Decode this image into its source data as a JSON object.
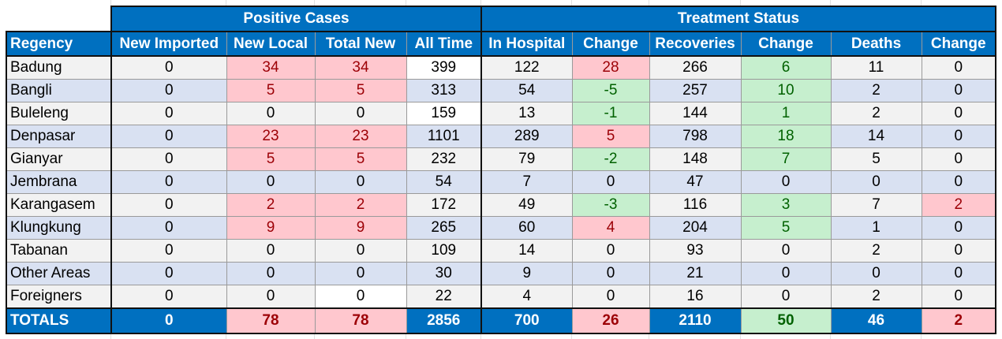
{
  "groups": {
    "positive_cases": "Positive Cases",
    "treatment_status": "Treatment Status"
  },
  "headers": [
    "Regency",
    "New Imported",
    "New Local",
    "Total New",
    "All Time",
    "In Hospital",
    "Change",
    "Recoveries",
    "Change",
    "Deaths",
    "Change"
  ],
  "rows": [
    [
      "Badung",
      "0",
      "34",
      "34",
      "399",
      "122",
      "28",
      "266",
      "6",
      "11",
      "0"
    ],
    [
      "Bangli",
      "0",
      "5",
      "5",
      "313",
      "54",
      "-5",
      "257",
      "10",
      "2",
      "0"
    ],
    [
      "Buleleng",
      "0",
      "0",
      "0",
      "159",
      "13",
      "-1",
      "144",
      "1",
      "2",
      "0"
    ],
    [
      "Denpasar",
      "0",
      "23",
      "23",
      "1101",
      "289",
      "5",
      "798",
      "18",
      "14",
      "0"
    ],
    [
      "Gianyar",
      "0",
      "5",
      "5",
      "232",
      "79",
      "-2",
      "148",
      "7",
      "5",
      "0"
    ],
    [
      "Jembrana",
      "0",
      "0",
      "0",
      "54",
      "7",
      "0",
      "47",
      "0",
      "0",
      "0"
    ],
    [
      "Karangasem",
      "0",
      "2",
      "2",
      "172",
      "49",
      "-3",
      "116",
      "3",
      "7",
      "2"
    ],
    [
      "Klungkung",
      "0",
      "9",
      "9",
      "265",
      "60",
      "4",
      "204",
      "5",
      "1",
      "0"
    ],
    [
      "Tabanan",
      "0",
      "0",
      "0",
      "109",
      "14",
      "0",
      "93",
      "0",
      "2",
      "0"
    ],
    [
      "Other Areas",
      "0",
      "0",
      "0",
      "30",
      "9",
      "0",
      "21",
      "0",
      "0",
      "0"
    ],
    [
      "Foreigners",
      "0",
      "0",
      "0",
      "22",
      "4",
      "0",
      "16",
      "0",
      "2",
      "0"
    ]
  ],
  "totals": [
    "TOTALS",
    "0",
    "78",
    "78",
    "2856",
    "700",
    "26",
    "2110",
    "50",
    "46",
    "2"
  ],
  "colors": {
    "header_blue": "#0070c0",
    "red_fill": "#ffc7ce",
    "red_text": "#9c0006",
    "green_fill": "#c6efce",
    "green_text": "#006100"
  }
}
